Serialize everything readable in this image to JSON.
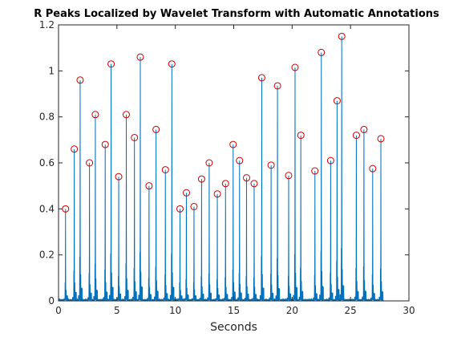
{
  "chart_data": {
    "type": "line",
    "title": "R Peaks Localized by Wavelet Transform with Automatic Annotations",
    "xlabel": "Seconds",
    "ylabel": "",
    "xlim": [
      0,
      30
    ],
    "ylim": [
      0,
      1.2
    ],
    "xticks": [
      0,
      5,
      10,
      15,
      20,
      25,
      30
    ],
    "yticks": [
      0,
      0.2,
      0.4,
      0.6,
      0.8,
      1,
      1.2
    ],
    "xtick_labels": [
      "0",
      "5",
      "10",
      "15",
      "20",
      "25",
      "30"
    ],
    "ytick_labels": [
      "0",
      "0.2",
      "0.4",
      "0.6",
      "0.8",
      "1",
      "1.2"
    ],
    "grid": false,
    "line_color": "#0072bd",
    "marker_color": "#cc0000",
    "signal_end": 27.8,
    "series": [
      {
        "marker": "circle",
        "x": [
          0.6,
          1.35,
          1.85,
          2.65,
          3.15,
          4.0,
          4.5,
          5.15,
          5.8,
          6.5,
          7.0,
          7.75,
          8.35,
          9.15,
          9.7,
          10.4,
          10.95,
          11.6,
          12.25,
          12.9,
          13.6,
          14.3,
          14.95,
          15.5,
          16.1,
          16.75,
          17.4,
          18.2,
          18.75,
          19.7,
          20.25,
          20.75,
          21.95,
          22.5,
          23.3,
          23.85,
          24.25,
          25.5,
          26.15,
          26.9,
          27.6
        ],
        "y": [
          0.4,
          0.66,
          0.96,
          0.6,
          0.81,
          0.68,
          1.03,
          0.54,
          0.81,
          0.71,
          1.06,
          0.5,
          0.745,
          0.57,
          1.03,
          0.4,
          0.47,
          0.41,
          0.53,
          0.6,
          0.465,
          0.51,
          0.68,
          0.61,
          0.535,
          0.51,
          0.97,
          0.59,
          0.935,
          0.545,
          1.015,
          0.72,
          0.565,
          1.08,
          0.61,
          0.87,
          1.15,
          0.72,
          0.745,
          0.575,
          0.705
        ]
      }
    ]
  }
}
